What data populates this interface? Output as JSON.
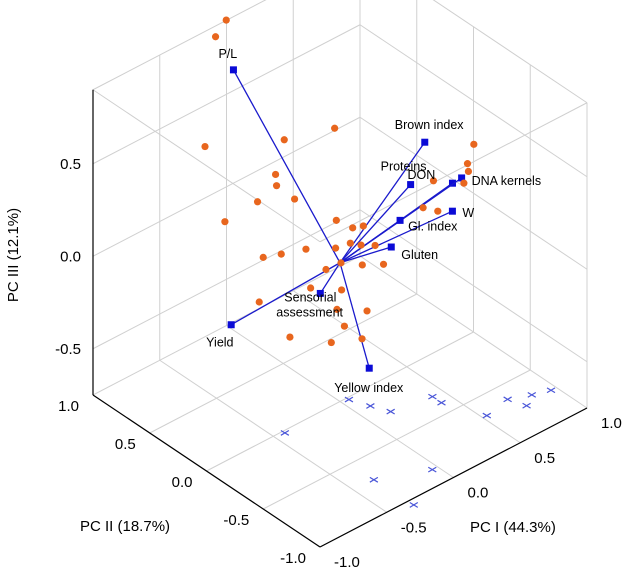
{
  "chart_data": {
    "type": "scatter",
    "subtype": "3d-biplot",
    "axes": {
      "x": {
        "label": "PC I (44.3%)",
        "ticks": [
          "-1.0",
          "-0.5",
          "0.0",
          "0.5",
          "1.0"
        ]
      },
      "y": {
        "label": "PC II (18.7%)",
        "ticks": [
          "-1.0",
          "-0.5",
          "0.0",
          "0.5",
          "1.0"
        ]
      },
      "z": {
        "label": "PC III (12.1%)",
        "ticks": [
          "-0.5",
          "0.0",
          "0.5"
        ]
      }
    },
    "vectors": [
      {
        "name": "P/L",
        "x": -0.05,
        "y": 0.88,
        "z": 0.7
      },
      {
        "name": "Brown index",
        "x": 0.72,
        "y": 0.1,
        "z": 0.34
      },
      {
        "name": "Proteins",
        "x": 0.58,
        "y": 0.06,
        "z": 0.18
      },
      {
        "name": "DON",
        "x": 0.8,
        "y": -0.05,
        "z": 0.15
      },
      {
        "name": "DNA kernels",
        "x": 0.86,
        "y": -0.06,
        "z": 0.16
      },
      {
        "name": "Gl. index",
        "x": 0.45,
        "y": 0.0,
        "z": 0.06
      },
      {
        "name": "W",
        "x": 0.74,
        "y": -0.12,
        "z": 0.05
      },
      {
        "name": "Gluten",
        "x": 0.35,
        "y": -0.04,
        "z": -0.03
      },
      {
        "name": "Sensorial assessment",
        "x": -0.02,
        "y": 0.15,
        "z": -0.22
      },
      {
        "name": "Yield",
        "x": -0.22,
        "y": 0.7,
        "z": -0.54
      },
      {
        "name": "Yellow index",
        "x": 0.1,
        "y": -0.14,
        "z": -0.55
      }
    ],
    "scores": [
      {
        "x": -0.15,
        "y": 0.92,
        "z": 0.9
      },
      {
        "x": -0.07,
        "y": 0.92,
        "z": 0.96
      },
      {
        "x": -0.28,
        "y": 0.86,
        "z": 0.38
      },
      {
        "x": 0.05,
        "y": 0.55,
        "z": 0.42
      },
      {
        "x": 0.3,
        "y": 0.4,
        "z": 0.45
      },
      {
        "x": -0.1,
        "y": 0.45,
        "z": 0.33
      },
      {
        "x": -0.05,
        "y": 0.5,
        "z": 0.23
      },
      {
        "x": 0.0,
        "y": 0.4,
        "z": 0.18
      },
      {
        "x": -0.15,
        "y": 0.55,
        "z": 0.16
      },
      {
        "x": -0.25,
        "y": 0.72,
        "z": 0.02
      },
      {
        "x": 0.1,
        "y": 0.15,
        "z": 0.13
      },
      {
        "x": 0.18,
        "y": 0.1,
        "z": 0.08
      },
      {
        "x": 0.26,
        "y": 0.1,
        "z": 0.06
      },
      {
        "x": 0.12,
        "y": 0.05,
        "z": 0.04
      },
      {
        "x": 0.2,
        "y": 0.05,
        "z": 0.0
      },
      {
        "x": 0.28,
        "y": 0.02,
        "z": -0.02
      },
      {
        "x": 0.05,
        "y": 0.05,
        "z": -0.04
      },
      {
        "x": 0.15,
        "y": -0.02,
        "z": -0.06
      },
      {
        "x": -0.02,
        "y": 0.1,
        "z": -0.07
      },
      {
        "x": 0.0,
        "y": 0.3,
        "z": -0.05
      },
      {
        "x": -0.1,
        "y": 0.4,
        "z": -0.08
      },
      {
        "x": -0.15,
        "y": 0.5,
        "z": -0.12
      },
      {
        "x": -0.05,
        "y": 0.2,
        "z": -0.2
      },
      {
        "x": 0.08,
        "y": 0.08,
        "z": -0.21
      },
      {
        "x": 0.02,
        "y": 0.05,
        "z": -0.28
      },
      {
        "x": 0.16,
        "y": -0.05,
        "z": -0.3
      },
      {
        "x": -0.18,
        "y": 0.5,
        "z": -0.35
      },
      {
        "x": 0.05,
        "y": 0.02,
        "z": -0.37
      },
      {
        "x": 0.08,
        "y": -0.1,
        "z": -0.4
      },
      {
        "x": -0.12,
        "y": 0.3,
        "z": -0.48
      },
      {
        "x": 0.02,
        "y": 0.1,
        "z": -0.48
      },
      {
        "x": 0.12,
        "y": 0.18,
        "z": -0.04
      },
      {
        "x": 0.36,
        "y": 0.04,
        "z": -0.16
      },
      {
        "x": 0.58,
        "y": -0.05,
        "z": 0.1
      },
      {
        "x": 0.7,
        "y": 0.0,
        "z": 0.18
      },
      {
        "x": 0.86,
        "y": -0.12,
        "z": 0.22
      },
      {
        "x": 0.87,
        "y": -0.1,
        "z": 0.25
      },
      {
        "x": 0.96,
        "y": -0.05,
        "z": 0.3
      },
      {
        "x": 0.69,
        "y": -0.05,
        "z": 0.04
      },
      {
        "x": 0.86,
        "y": -0.08,
        "z": 0.14
      }
    ],
    "projections": [
      {
        "x": -0.43,
        "y": -0.02
      },
      {
        "x": 0.05,
        "y": -0.02
      },
      {
        "x": 0.1,
        "y": -0.15
      },
      {
        "x": 0.15,
        "y": -0.27
      },
      {
        "x": 0.42,
        "y": -0.32
      },
      {
        "x": 0.42,
        "y": -0.4
      },
      {
        "x": 0.53,
        "y": -0.67
      },
      {
        "x": 0.72,
        "y": -0.63
      },
      {
        "x": 0.76,
        "y": -0.75
      },
      {
        "x": 0.85,
        "y": -0.69
      },
      {
        "x": 0.96,
        "y": -0.73
      },
      {
        "x": -0.04,
        "y": -0.86
      },
      {
        "x": -0.35,
        "y": -0.71
      },
      {
        "x": -0.34,
        "y": -1.05
      }
    ],
    "grid": true
  }
}
